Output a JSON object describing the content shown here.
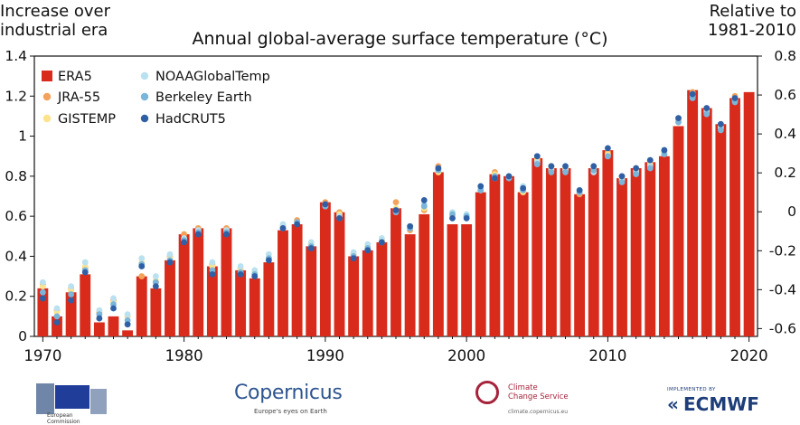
{
  "corner_left": {
    "line1": "Increase over",
    "line2": "industrial era"
  },
  "corner_right": {
    "line1": "Relative to",
    "line2": "1981-2010"
  },
  "logos": {
    "eu_caption_1": "European",
    "eu_caption_2": "Commission",
    "copernicus_name": "Copernicus",
    "copernicus_tagline": "Europe's eyes on Earth",
    "c3s_line1": "Climate",
    "c3s_line2": "Change Service",
    "c3s_url": "climate.copernicus.eu",
    "ecmwf_small": "IMPLEMENTED BY",
    "ecmwf_glyph": "«",
    "ecmwf_name": "ECMWF"
  },
  "colors": {
    "ERA5": "#d92b1c",
    "JRA-55": "#f4a15a",
    "GISTEMP": "#fde38c",
    "NOAAGlobalTemp": "#b9e1ef",
    "Berkeley Earth": "#7ab5da",
    "HadCRUT5": "#2f5fa5"
  },
  "chart_data": {
    "type": "bar",
    "title": "Annual global-average surface temperature (°C)",
    "ylim_left": [
      0,
      1.4
    ],
    "yticks_left": [
      "0",
      "0.2",
      "0.4",
      "0.6",
      "0.8",
      "1",
      "1.2",
      "1.4"
    ],
    "ylim_right": [
      -0.64,
      0.8
    ],
    "yticks_right": [
      "-0.6",
      "-0.4",
      "-0.2",
      "0",
      "0.2",
      "0.4",
      "0.6",
      "0.8"
    ],
    "xticks": [
      "1970",
      "1980",
      "1990",
      "2000",
      "2010",
      "2020"
    ],
    "legend_position": "top-left",
    "legend": [
      "ERA5",
      "JRA-55",
      "GISTEMP",
      "NOAAGlobalTemp",
      "Berkeley Earth",
      "HadCRUT5"
    ],
    "grid": false,
    "x": [
      1970,
      1971,
      1972,
      1973,
      1974,
      1975,
      1976,
      1977,
      1978,
      1979,
      1980,
      1981,
      1982,
      1983,
      1984,
      1985,
      1986,
      1987,
      1988,
      1989,
      1990,
      1991,
      1992,
      1993,
      1994,
      1995,
      1996,
      1997,
      1998,
      1999,
      2000,
      2001,
      2002,
      2003,
      2004,
      2005,
      2006,
      2007,
      2008,
      2009,
      2010,
      2011,
      2012,
      2013,
      2014,
      2015,
      2016,
      2017,
      2018,
      2019,
      2020
    ],
    "series": [
      {
        "name": "ERA5",
        "mark": "bar",
        "values": [
          0.24,
          0.1,
          0.22,
          0.31,
          0.07,
          0.1,
          0.03,
          0.3,
          0.24,
          0.38,
          0.51,
          0.54,
          0.35,
          0.54,
          0.33,
          0.29,
          0.37,
          0.53,
          0.56,
          0.45,
          0.67,
          0.62,
          0.4,
          0.43,
          0.47,
          0.64,
          0.51,
          0.61,
          0.82,
          0.56,
          0.56,
          0.72,
          0.81,
          0.8,
          0.72,
          0.89,
          0.84,
          0.84,
          0.71,
          0.84,
          0.93,
          0.79,
          0.84,
          0.87,
          0.9,
          1.05,
          1.23,
          1.14,
          1.06,
          1.19,
          1.22
        ]
      },
      {
        "name": "JRA-55",
        "mark": "point",
        "values": [
          0.26,
          0.13,
          0.24,
          0.34,
          0.12,
          0.18,
          0.1,
          0.3,
          0.27,
          0.4,
          0.51,
          0.54,
          0.36,
          0.54,
          0.34,
          0.31,
          0.39,
          0.55,
          0.58,
          0.46,
          0.67,
          0.62,
          0.41,
          0.45,
          0.48,
          0.67,
          0.53,
          0.63,
          0.85,
          0.6,
          0.6,
          0.73,
          0.82,
          0.8,
          0.73,
          0.89,
          0.85,
          0.84,
          0.71,
          0.84,
          0.92,
          0.8,
          0.84,
          0.88,
          0.91,
          1.08,
          1.22,
          1.13,
          1.06,
          1.2,
          null
        ]
      },
      {
        "name": "GISTEMP",
        "mark": "point",
        "values": [
          0.25,
          0.12,
          0.23,
          0.35,
          0.13,
          0.17,
          0.1,
          0.37,
          0.28,
          0.39,
          0.48,
          0.52,
          0.35,
          0.52,
          0.34,
          0.32,
          0.39,
          0.55,
          0.57,
          0.46,
          0.66,
          0.61,
          0.41,
          0.45,
          0.48,
          0.64,
          0.55,
          0.64,
          0.82,
          0.6,
          0.6,
          0.73,
          0.81,
          0.8,
          0.72,
          0.88,
          0.84,
          0.84,
          0.72,
          0.84,
          0.91,
          0.79,
          0.83,
          0.86,
          0.92,
          1.08,
          1.21,
          1.13,
          1.05,
          1.19,
          null
        ]
      },
      {
        "name": "NOAAGlobalTemp",
        "mark": "point",
        "values": [
          0.27,
          0.14,
          0.25,
          0.37,
          0.13,
          0.19,
          0.11,
          0.39,
          0.3,
          0.41,
          0.49,
          0.53,
          0.37,
          0.53,
          0.35,
          0.33,
          0.41,
          0.56,
          0.57,
          0.47,
          0.65,
          0.6,
          0.42,
          0.46,
          0.49,
          0.63,
          0.54,
          0.66,
          0.84,
          0.62,
          0.61,
          0.74,
          0.79,
          0.8,
          0.75,
          0.87,
          0.83,
          0.83,
          0.73,
          0.82,
          0.9,
          0.78,
          0.82,
          0.85,
          0.93,
          1.09,
          1.2,
          1.12,
          1.04,
          1.18,
          null
        ]
      },
      {
        "name": "Berkeley Earth",
        "mark": "point",
        "values": [
          0.22,
          0.1,
          0.21,
          0.33,
          0.11,
          0.16,
          0.08,
          0.36,
          0.27,
          0.38,
          0.48,
          0.52,
          0.33,
          0.52,
          0.32,
          0.31,
          0.39,
          0.54,
          0.57,
          0.45,
          0.65,
          0.59,
          0.4,
          0.44,
          0.47,
          0.62,
          0.54,
          0.65,
          0.83,
          0.61,
          0.6,
          0.73,
          0.8,
          0.79,
          0.73,
          0.86,
          0.82,
          0.82,
          0.72,
          0.83,
          0.9,
          0.77,
          0.81,
          0.84,
          0.91,
          1.07,
          1.19,
          1.11,
          1.03,
          1.17,
          null
        ]
      },
      {
        "name": "HadCRUT5",
        "mark": "point",
        "values": [
          0.19,
          0.07,
          0.18,
          0.32,
          0.09,
          0.14,
          0.06,
          0.35,
          0.25,
          0.37,
          0.47,
          0.51,
          0.31,
          0.51,
          0.31,
          0.3,
          0.38,
          0.54,
          0.56,
          0.44,
          0.66,
          0.59,
          0.39,
          0.43,
          0.47,
          0.63,
          0.55,
          0.68,
          0.84,
          0.59,
          0.59,
          0.75,
          0.79,
          0.8,
          0.74,
          0.9,
          0.85,
          0.85,
          0.73,
          0.85,
          0.94,
          0.8,
          0.84,
          0.88,
          0.93,
          1.09,
          1.21,
          1.14,
          1.06,
          1.19,
          null
        ]
      }
    ]
  }
}
